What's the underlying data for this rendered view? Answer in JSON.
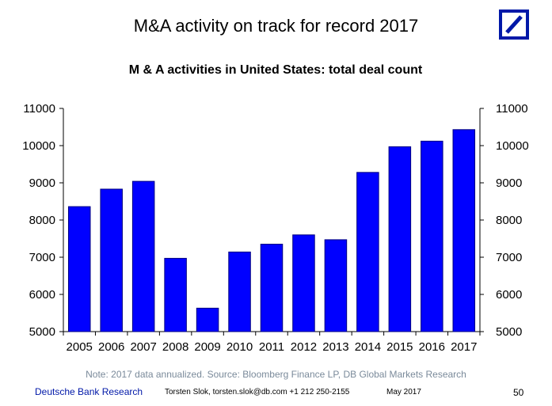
{
  "slide": {
    "title": "M&A activity on track for record 2017"
  },
  "logo": {
    "color": "#0018A8"
  },
  "chart_data": {
    "type": "bar",
    "title": "M & A activities in United States: total deal count",
    "categories": [
      "2005",
      "2006",
      "2007",
      "2008",
      "2009",
      "2010",
      "2011",
      "2012",
      "2013",
      "2014",
      "2015",
      "2016",
      "2017"
    ],
    "values": [
      8360,
      8830,
      9040,
      6970,
      5630,
      7140,
      7350,
      7600,
      7470,
      9280,
      9970,
      10120,
      10430
    ],
    "ylim": [
      5000,
      11000
    ],
    "yticks": [
      5000,
      6000,
      7000,
      8000,
      9000,
      10000,
      11000
    ],
    "ytick_labels": [
      "5000",
      "6000",
      "7000",
      "8000",
      "9000",
      "10000",
      "11000"
    ],
    "xlabel": "",
    "ylabel": "",
    "grid": false,
    "bar_color": "#0000FF",
    "bar_edge_color": "#000080"
  },
  "note": "Note: 2017 data annualized. Source: Bloomberg Finance LP, DB Global Markets Research",
  "footer": {
    "brand": "Deutsche Bank Research",
    "contact": "Torsten Slok, torsten.slok@db.com +1 212 250-2155",
    "date": "May 2017",
    "page": "50"
  }
}
